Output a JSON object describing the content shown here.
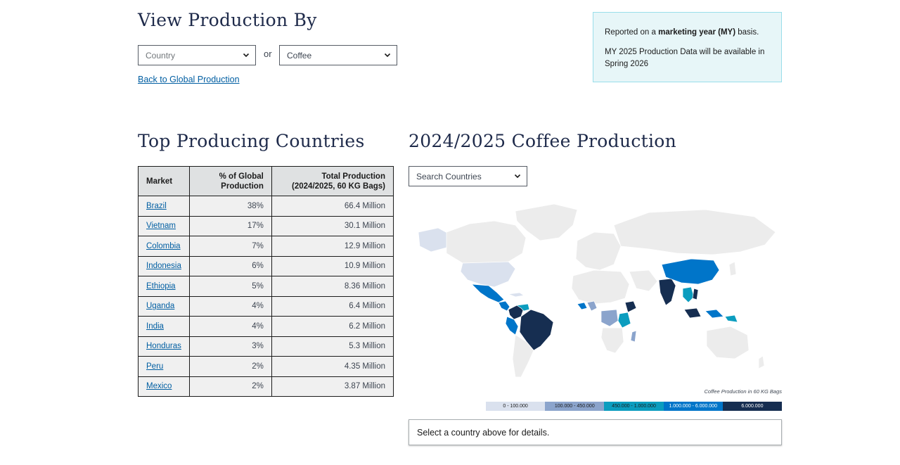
{
  "header": {
    "title": "View Production By",
    "country_select": "Country",
    "or_label": "or",
    "commodity_select": "Coffee",
    "back_link": "Back to Global Production"
  },
  "info_box": {
    "line1_prefix": "Reported on a ",
    "line1_bold": "marketing year (MY)",
    "line1_suffix": " basis.",
    "line2": "MY 2025 Production Data will be available in Spring 2026"
  },
  "top_countries": {
    "title": "Top Producing Countries",
    "columns": [
      "Market",
      "% of Global Production",
      "Total Production (2024/2025, 60 KG Bags)"
    ],
    "rows": [
      {
        "market": "Brazil",
        "pct": "38%",
        "total": "66.4 Million"
      },
      {
        "market": "Vietnam",
        "pct": "17%",
        "total": "30.1 Million"
      },
      {
        "market": "Colombia",
        "pct": "7%",
        "total": "12.9 Million"
      },
      {
        "market": "Indonesia",
        "pct": "6%",
        "total": "10.9 Million"
      },
      {
        "market": "Ethiopia",
        "pct": "5%",
        "total": "8.36 Million"
      },
      {
        "market": "Uganda",
        "pct": "4%",
        "total": "6.4 Million"
      },
      {
        "market": "India",
        "pct": "4%",
        "total": "6.2 Million"
      },
      {
        "market": "Honduras",
        "pct": "3%",
        "total": "5.3 Million"
      },
      {
        "market": "Peru",
        "pct": "2%",
        "total": "4.35 Million"
      },
      {
        "market": "Mexico",
        "pct": "2%",
        "total": "3.87 Million"
      }
    ]
  },
  "map": {
    "title": "2024/2025 Coffee Production",
    "search_placeholder": "Search Countries",
    "legend_title": "Coffee Production in 60 KG Bags",
    "legend": [
      {
        "label": "0 - 100.000",
        "color": "#dae1ee",
        "text_color": "#1b1b1b"
      },
      {
        "label": "100.000 - 450.000",
        "color": "#8ba4cc",
        "text_color": "#1b1b1b"
      },
      {
        "label": "450.000 - 1.000.000",
        "color": "#0b9dbf",
        "text_color": "#1b1b1b"
      },
      {
        "label": "1.000.000 - 6.000.000",
        "color": "#0075c9",
        "text_color": "#ffffff"
      },
      {
        "label": "6.000.000",
        "color": "#162e51",
        "text_color": "#ffffff"
      }
    ],
    "details_text": "Select a country above for details."
  }
}
